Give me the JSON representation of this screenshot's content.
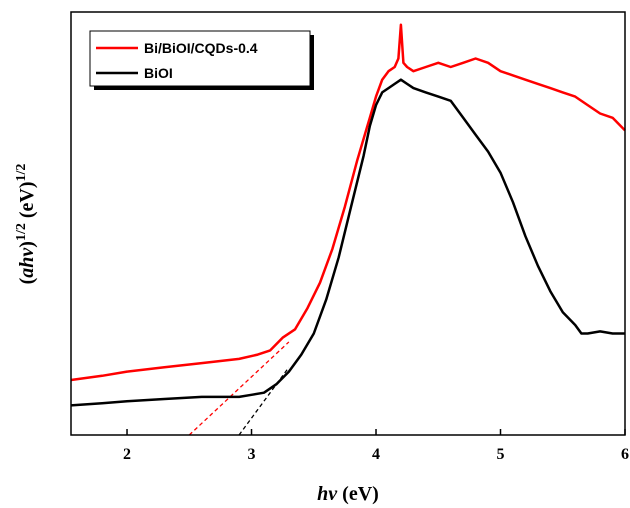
{
  "chart_data": {
    "type": "line",
    "xlabel_parts": [
      "hv",
      " (eV)"
    ],
    "ylabel_parts": [
      "(",
      "ahv",
      ")",
      "1/2",
      " (eV)",
      "1/2"
    ],
    "xlim": [
      1.55,
      6.0
    ],
    "ylim": [
      0.0,
      1.0
    ],
    "x_ticks": [
      2,
      3,
      4,
      5,
      6
    ],
    "x_tick_labels": [
      "2",
      "3",
      "4",
      "5",
      "6"
    ],
    "y_ticks_visible": false,
    "grid": false,
    "legend": {
      "position": "top-left"
    },
    "series": [
      {
        "name": "Bi/BiOI/CQDs-0.4",
        "color": "#ff0000",
        "x": [
          1.55,
          1.8,
          2.0,
          2.3,
          2.6,
          2.9,
          3.05,
          3.15,
          3.25,
          3.35,
          3.45,
          3.55,
          3.65,
          3.75,
          3.85,
          3.95,
          4.0,
          4.05,
          4.1,
          4.15,
          4.18,
          4.2,
          4.22,
          4.25,
          4.3,
          4.4,
          4.5,
          4.6,
          4.7,
          4.8,
          4.9,
          5.0,
          5.1,
          5.2,
          5.3,
          5.4,
          5.5,
          5.6,
          5.7,
          5.8,
          5.9,
          6.0
        ],
        "y": [
          0.13,
          0.14,
          0.15,
          0.16,
          0.17,
          0.18,
          0.19,
          0.2,
          0.23,
          0.25,
          0.3,
          0.36,
          0.44,
          0.54,
          0.65,
          0.75,
          0.8,
          0.84,
          0.86,
          0.87,
          0.89,
          0.97,
          0.88,
          0.87,
          0.86,
          0.87,
          0.88,
          0.87,
          0.88,
          0.89,
          0.88,
          0.86,
          0.85,
          0.84,
          0.83,
          0.82,
          0.81,
          0.8,
          0.78,
          0.76,
          0.75,
          0.72
        ]
      },
      {
        "name": "BiOI",
        "color": "#000000",
        "x": [
          1.55,
          1.8,
          2.0,
          2.3,
          2.6,
          2.9,
          3.0,
          3.1,
          3.2,
          3.3,
          3.4,
          3.5,
          3.6,
          3.7,
          3.8,
          3.9,
          3.95,
          4.0,
          4.05,
          4.1,
          4.15,
          4.2,
          4.25,
          4.3,
          4.4,
          4.5,
          4.6,
          4.7,
          4.8,
          4.9,
          5.0,
          5.1,
          5.2,
          5.3,
          5.4,
          5.5,
          5.6,
          5.65,
          5.7,
          5.8,
          5.9,
          6.0
        ],
        "y": [
          0.07,
          0.075,
          0.08,
          0.085,
          0.09,
          0.09,
          0.095,
          0.1,
          0.12,
          0.15,
          0.19,
          0.24,
          0.32,
          0.42,
          0.54,
          0.66,
          0.73,
          0.78,
          0.81,
          0.82,
          0.83,
          0.84,
          0.83,
          0.82,
          0.81,
          0.8,
          0.79,
          0.75,
          0.71,
          0.67,
          0.62,
          0.55,
          0.47,
          0.4,
          0.34,
          0.29,
          0.26,
          0.24,
          0.24,
          0.245,
          0.24,
          0.24
        ]
      }
    ],
    "annotations": [
      {
        "kind": "tangent-extrapolation",
        "color": "#ff0000",
        "style": "dashed",
        "x": [
          2.5,
          3.3
        ],
        "y": [
          0.0,
          0.22
        ]
      },
      {
        "kind": "tangent-extrapolation",
        "color": "#000000",
        "style": "dashed",
        "x": [
          2.9,
          3.3
        ],
        "y": [
          0.0,
          0.16
        ]
      }
    ]
  }
}
